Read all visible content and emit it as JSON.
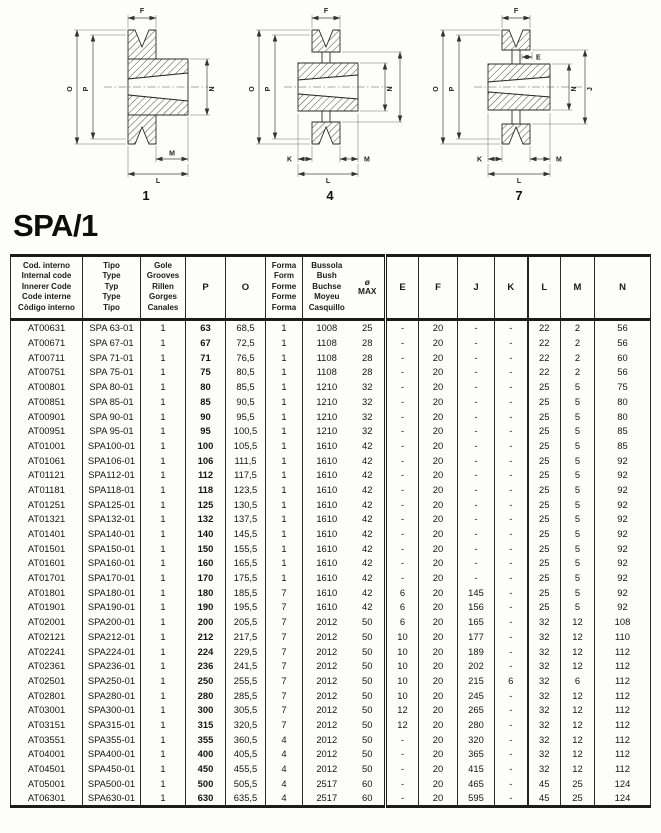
{
  "title": "SPA/1",
  "diagrams": [
    {
      "number": "1",
      "labels": {
        "F": "F",
        "O": "O",
        "P": "P",
        "N": "N",
        "M": "M",
        "L": "L"
      }
    },
    {
      "number": "4",
      "labels": {
        "F": "F",
        "O": "O",
        "P": "P",
        "N": "N",
        "K": "K",
        "M": "M",
        "L": "L"
      }
    },
    {
      "number": "7",
      "labels": {
        "F": "F",
        "E": "E",
        "O": "O",
        "P": "P",
        "N": "N",
        "J": "J",
        "K": "K",
        "M": "M",
        "L": "L"
      }
    }
  ],
  "table": {
    "headers": [
      {
        "key": "code",
        "label": "Cod. interno\nInternal code\nInnerer Code\nCode interne\nCòdigo interno"
      },
      {
        "key": "tipo",
        "label": "Tipo\nType\nTyp\nType\nTipo"
      },
      {
        "key": "gole",
        "label": "Gole\nGrooves\nRillen\nGorges\nCanales"
      },
      {
        "key": "p",
        "label": "P"
      },
      {
        "key": "o",
        "label": "O"
      },
      {
        "key": "forma",
        "label": "Forma\nForm\nForme\nForme\nForma"
      },
      {
        "key": "bussola",
        "label": "Bussola\nBush\nBuchse\nMoyeu\nCasquillo"
      },
      {
        "key": "omax",
        "label": "ø\nMAX"
      },
      {
        "key": "e",
        "label": "E"
      },
      {
        "key": "f",
        "label": "F"
      },
      {
        "key": "j",
        "label": "J"
      },
      {
        "key": "k",
        "label": "K"
      },
      {
        "key": "l",
        "label": "L"
      },
      {
        "key": "m",
        "label": "M"
      },
      {
        "key": "n",
        "label": "N"
      }
    ],
    "rows": [
      [
        "AT00631",
        "SPA 63-01",
        "1",
        "63",
        "68,5",
        "1",
        "1008",
        "25",
        "-",
        "20",
        "-",
        "-",
        "22",
        "2",
        "56"
      ],
      [
        "AT00671",
        "SPA 67-01",
        "1",
        "67",
        "72,5",
        "1",
        "1108",
        "28",
        "-",
        "20",
        "-",
        "-",
        "22",
        "2",
        "56"
      ],
      [
        "AT00711",
        "SPA 71-01",
        "1",
        "71",
        "76,5",
        "1",
        "1108",
        "28",
        "-",
        "20",
        "-",
        "-",
        "22",
        "2",
        "60"
      ],
      [
        "AT00751",
        "SPA 75-01",
        "1",
        "75",
        "80,5",
        "1",
        "1108",
        "28",
        "-",
        "20",
        "-",
        "-",
        "22",
        "2",
        "56"
      ],
      [
        "AT00801",
        "SPA 80-01",
        "1",
        "80",
        "85,5",
        "1",
        "1210",
        "32",
        "-",
        "20",
        "-",
        "-",
        "25",
        "5",
        "75"
      ],
      [
        "AT00851",
        "SPA 85-01",
        "1",
        "85",
        "90,5",
        "1",
        "1210",
        "32",
        "-",
        "20",
        "-",
        "-",
        "25",
        "5",
        "80"
      ],
      [
        "AT00901",
        "SPA 90-01",
        "1",
        "90",
        "95,5",
        "1",
        "1210",
        "32",
        "-",
        "20",
        "-",
        "-",
        "25",
        "5",
        "80"
      ],
      [
        "AT00951",
        "SPA 95-01",
        "1",
        "95",
        "100,5",
        "1",
        "1210",
        "32",
        "-",
        "20",
        "-",
        "-",
        "25",
        "5",
        "85"
      ],
      [
        "AT01001",
        "SPA100-01",
        "1",
        "100",
        "105,5",
        "1",
        "1610",
        "42",
        "-",
        "20",
        "-",
        "-",
        "25",
        "5",
        "85"
      ],
      [
        "AT01061",
        "SPA106-01",
        "1",
        "106",
        "111,5",
        "1",
        "1610",
        "42",
        "-",
        "20",
        "-",
        "-",
        "25",
        "5",
        "92"
      ],
      [
        "AT01121",
        "SPA112-01",
        "1",
        "112",
        "117,5",
        "1",
        "1610",
        "42",
        "-",
        "20",
        "-",
        "-",
        "25",
        "5",
        "92"
      ],
      [
        "AT01181",
        "SPA118-01",
        "1",
        "118",
        "123,5",
        "1",
        "1610",
        "42",
        "-",
        "20",
        "-",
        "-",
        "25",
        "5",
        "92"
      ],
      [
        "AT01251",
        "SPA125-01",
        "1",
        "125",
        "130,5",
        "1",
        "1610",
        "42",
        "-",
        "20",
        "-",
        "-",
        "25",
        "5",
        "92"
      ],
      [
        "AT01321",
        "SPA132-01",
        "1",
        "132",
        "137,5",
        "1",
        "1610",
        "42",
        "-",
        "20",
        "-",
        "-",
        "25",
        "5",
        "92"
      ],
      [
        "AT01401",
        "SPA140-01",
        "1",
        "140",
        "145,5",
        "1",
        "1610",
        "42",
        "-",
        "20",
        "-",
        "-",
        "25",
        "5",
        "92"
      ],
      [
        "AT01501",
        "SPA150-01",
        "1",
        "150",
        "155,5",
        "1",
        "1610",
        "42",
        "-",
        "20",
        "-",
        "-",
        "25",
        "5",
        "92"
      ],
      [
        "AT01601",
        "SPA160-01",
        "1",
        "160",
        "165,5",
        "1",
        "1610",
        "42",
        "-",
        "20",
        "-",
        "-",
        "25",
        "5",
        "92"
      ],
      [
        "AT01701",
        "SPA170-01",
        "1",
        "170",
        "175,5",
        "1",
        "1610",
        "42",
        "-",
        "20",
        "-",
        "-",
        "25",
        "5",
        "92"
      ],
      [
        "AT01801",
        "SPA180-01",
        "1",
        "180",
        "185,5",
        "7",
        "1610",
        "42",
        "6",
        "20",
        "145",
        "-",
        "25",
        "5",
        "92"
      ],
      [
        "AT01901",
        "SPA190-01",
        "1",
        "190",
        "195,5",
        "7",
        "1610",
        "42",
        "6",
        "20",
        "156",
        "-",
        "25",
        "5",
        "92"
      ],
      [
        "AT02001",
        "SPA200-01",
        "1",
        "200",
        "205,5",
        "7",
        "2012",
        "50",
        "6",
        "20",
        "165",
        "-",
        "32",
        "12",
        "108"
      ],
      [
        "AT02121",
        "SPA212-01",
        "1",
        "212",
        "217,5",
        "7",
        "2012",
        "50",
        "10",
        "20",
        "177",
        "-",
        "32",
        "12",
        "110"
      ],
      [
        "AT02241",
        "SPA224-01",
        "1",
        "224",
        "229,5",
        "7",
        "2012",
        "50",
        "10",
        "20",
        "189",
        "-",
        "32",
        "12",
        "112"
      ],
      [
        "AT02361",
        "SPA236-01",
        "1",
        "236",
        "241,5",
        "7",
        "2012",
        "50",
        "10",
        "20",
        "202",
        "-",
        "32",
        "12",
        "112"
      ],
      [
        "AT02501",
        "SPA250-01",
        "1",
        "250",
        "255,5",
        "7",
        "2012",
        "50",
        "10",
        "20",
        "215",
        "6",
        "32",
        "6",
        "112"
      ],
      [
        "AT02801",
        "SPA280-01",
        "1",
        "280",
        "285,5",
        "7",
        "2012",
        "50",
        "10",
        "20",
        "245",
        "-",
        "32",
        "12",
        "112"
      ],
      [
        "AT03001",
        "SPA300-01",
        "1",
        "300",
        "305,5",
        "7",
        "2012",
        "50",
        "12",
        "20",
        "265",
        "-",
        "32",
        "12",
        "112"
      ],
      [
        "AT03151",
        "SPA315-01",
        "1",
        "315",
        "320,5",
        "7",
        "2012",
        "50",
        "12",
        "20",
        "280",
        "-",
        "32",
        "12",
        "112"
      ],
      [
        "AT03551",
        "SPA355-01",
        "1",
        "355",
        "360,5",
        "4",
        "2012",
        "50",
        "-",
        "20",
        "320",
        "-",
        "32",
        "12",
        "112"
      ],
      [
        "AT04001",
        "SPA400-01",
        "1",
        "400",
        "405,5",
        "4",
        "2012",
        "50",
        "-",
        "20",
        "365",
        "-",
        "32",
        "12",
        "112"
      ],
      [
        "AT04501",
        "SPA450-01",
        "1",
        "450",
        "455,5",
        "4",
        "2012",
        "50",
        "-",
        "20",
        "415",
        "-",
        "32",
        "12",
        "112"
      ],
      [
        "AT05001",
        "SPA500-01",
        "1",
        "500",
        "505,5",
        "4",
        "2517",
        "60",
        "-",
        "20",
        "465",
        "-",
        "45",
        "25",
        "124"
      ],
      [
        "AT06301",
        "SPA630-01",
        "1",
        "630",
        "635,5",
        "4",
        "2517",
        "60",
        "-",
        "20",
        "595",
        "-",
        "45",
        "25",
        "124"
      ]
    ]
  }
}
